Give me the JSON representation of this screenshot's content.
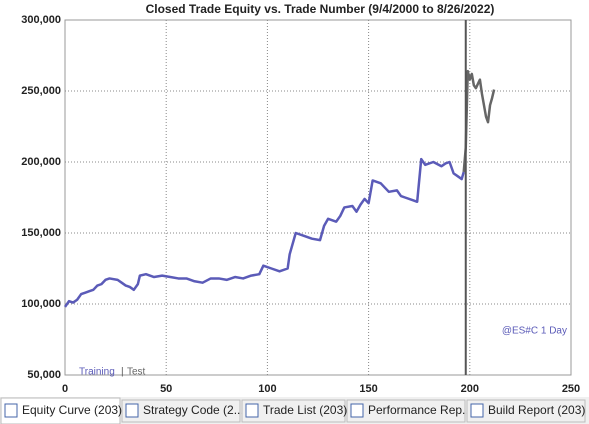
{
  "chart_data": {
    "type": "line",
    "title": "Closed Trade Equity vs. Trade Number (9/4/2000 to 8/26/2022)",
    "xlim": [
      0,
      250
    ],
    "xticks": [
      0,
      50,
      100,
      150,
      200,
      250
    ],
    "ylim": [
      50000,
      300000
    ],
    "yticks": [
      {
        "value": 50000,
        "label": "50,000"
      },
      {
        "value": 100000,
        "label": "100,000"
      },
      {
        "value": 150000,
        "label": "150,000"
      },
      {
        "value": 200000,
        "label": "200,000"
      },
      {
        "value": 250000,
        "label": "250,000"
      },
      {
        "value": 300000,
        "label": "300,000"
      }
    ],
    "grid": true,
    "divider_x": 198,
    "annotation": "@ES#C 1 Day",
    "legend_separator": "|",
    "series": [
      {
        "name": "Training",
        "color": "#5b5bb8",
        "x": [
          0,
          2,
          4,
          6,
          8,
          10,
          12,
          14,
          16,
          18,
          20,
          22,
          26,
          28,
          30,
          32,
          34,
          36,
          37,
          40,
          44,
          48,
          52,
          56,
          60,
          64,
          68,
          72,
          76,
          80,
          84,
          88,
          92,
          96,
          98,
          102,
          106,
          110,
          111,
          114,
          118,
          122,
          126,
          128,
          130,
          134,
          136,
          138,
          142,
          144,
          146,
          148,
          150,
          152,
          156,
          160,
          164,
          166,
          168,
          172,
          174,
          176,
          178,
          182,
          186,
          188,
          190,
          192,
          194,
          196,
          197
        ],
        "values": [
          98000,
          102000,
          101000,
          103000,
          107000,
          108000,
          109000,
          110000,
          113000,
          114000,
          117000,
          118000,
          117000,
          115000,
          113000,
          112000,
          110000,
          114000,
          120000,
          121000,
          119000,
          120000,
          119000,
          118000,
          118000,
          116000,
          115000,
          118000,
          118000,
          117000,
          119000,
          118000,
          120000,
          121000,
          127000,
          125000,
          123000,
          125000,
          135000,
          150000,
          148000,
          146000,
          145000,
          155000,
          160000,
          158000,
          162000,
          168000,
          169000,
          165000,
          170000,
          174000,
          171000,
          187000,
          185000,
          179000,
          180000,
          176000,
          175000,
          173000,
          172000,
          202000,
          198000,
          200000,
          197000,
          199000,
          200000,
          192000,
          190000,
          188000,
          193000
        ]
      },
      {
        "name": "Test",
        "color": "#666666",
        "x": [
          197,
          198,
          199,
          200,
          201,
          202,
          203,
          205,
          206,
          207,
          208,
          209,
          210,
          211,
          212
        ],
        "values": [
          193000,
          210000,
          264000,
          258000,
          262000,
          254000,
          252000,
          258000,
          248000,
          240000,
          232000,
          228000,
          240000,
          245000,
          251000
        ]
      }
    ]
  },
  "tabs": [
    "Equity Curve (203)",
    "Strategy Code (2...",
    "Trade List (203)",
    "Performance Rep...",
    "Build Report (203)"
  ]
}
